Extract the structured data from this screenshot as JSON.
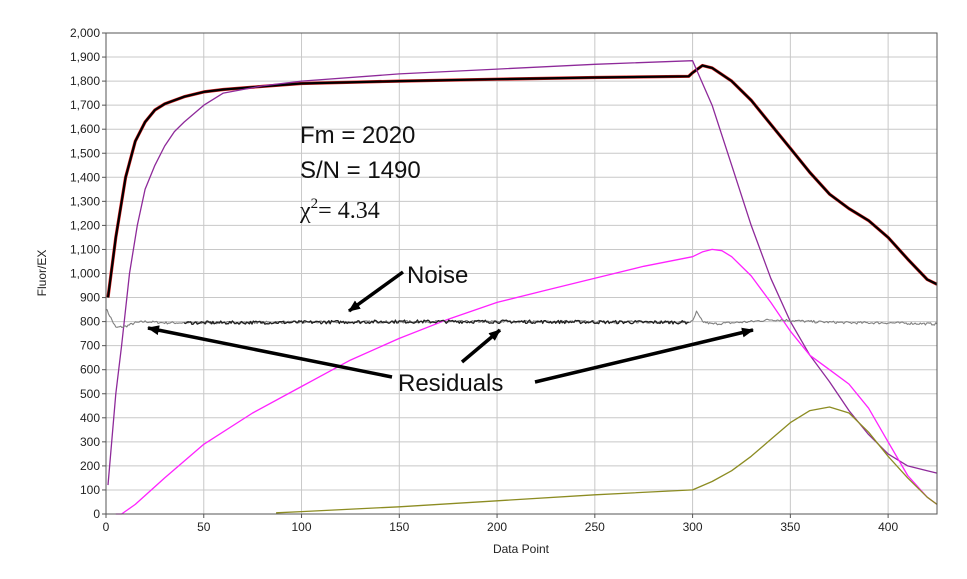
{
  "chart_data": {
    "type": "line",
    "xlabel": "Data Point",
    "ylabel": "Fluor/EX",
    "xlim": [
      0,
      425
    ],
    "ylim": [
      0,
      2000
    ],
    "x_ticks": [
      "0",
      "50",
      "100",
      "150",
      "200",
      "250",
      "300",
      "350",
      "400"
    ],
    "y_ticks": [
      "0",
      "100",
      "200",
      "300",
      "400",
      "500",
      "600",
      "700",
      "800",
      "900",
      "1,000",
      "1,100",
      "1,200",
      "1,300",
      "1,400",
      "1,500",
      "1,600",
      "1,700",
      "1,800",
      "1,900",
      "2,000"
    ],
    "grid": true,
    "series": [
      {
        "color": "#e02020",
        "points": [
          [
            1,
            900
          ],
          [
            5,
            1150
          ],
          [
            10,
            1400
          ],
          [
            15,
            1550
          ],
          [
            20,
            1630
          ],
          [
            25,
            1680
          ],
          [
            30,
            1705
          ],
          [
            40,
            1735
          ],
          [
            50,
            1755
          ],
          [
            60,
            1765
          ],
          [
            80,
            1778
          ],
          [
            100,
            1790
          ],
          [
            150,
            1800
          ],
          [
            200,
            1808
          ],
          [
            250,
            1815
          ],
          [
            298,
            1820
          ],
          [
            300,
            1835
          ],
          [
            305,
            1865
          ],
          [
            310,
            1855
          ],
          [
            320,
            1800
          ],
          [
            330,
            1720
          ],
          [
            340,
            1620
          ],
          [
            350,
            1520
          ],
          [
            360,
            1420
          ],
          [
            370,
            1330
          ],
          [
            380,
            1270
          ],
          [
            390,
            1220
          ],
          [
            400,
            1150
          ],
          [
            410,
            1060
          ],
          [
            420,
            975
          ],
          [
            425,
            955
          ]
        ]
      },
      {
        "color": "#000000",
        "points": [
          [
            1,
            900
          ],
          [
            5,
            1150
          ],
          [
            10,
            1400
          ],
          [
            15,
            1550
          ],
          [
            20,
            1630
          ],
          [
            25,
            1680
          ],
          [
            30,
            1705
          ],
          [
            40,
            1735
          ],
          [
            50,
            1755
          ],
          [
            60,
            1765
          ],
          [
            80,
            1778
          ],
          [
            100,
            1790
          ],
          [
            150,
            1800
          ],
          [
            200,
            1808
          ],
          [
            250,
            1815
          ],
          [
            298,
            1820
          ],
          [
            300,
            1835
          ],
          [
            305,
            1865
          ],
          [
            310,
            1855
          ],
          [
            320,
            1800
          ],
          [
            330,
            1720
          ],
          [
            340,
            1620
          ],
          [
            350,
            1520
          ],
          [
            360,
            1420
          ],
          [
            370,
            1330
          ],
          [
            380,
            1270
          ],
          [
            390,
            1220
          ],
          [
            400,
            1150
          ],
          [
            410,
            1060
          ],
          [
            420,
            975
          ],
          [
            425,
            955
          ]
        ]
      },
      {
        "color": "#8e2a9a",
        "points": [
          [
            1,
            120
          ],
          [
            5,
            500
          ],
          [
            8,
            700
          ],
          [
            12,
            1000
          ],
          [
            16,
            1200
          ],
          [
            20,
            1350
          ],
          [
            25,
            1450
          ],
          [
            30,
            1530
          ],
          [
            35,
            1590
          ],
          [
            40,
            1630
          ],
          [
            50,
            1700
          ],
          [
            60,
            1750
          ],
          [
            80,
            1780
          ],
          [
            100,
            1800
          ],
          [
            150,
            1830
          ],
          [
            200,
            1850
          ],
          [
            250,
            1870
          ],
          [
            300,
            1885
          ],
          [
            310,
            1700
          ],
          [
            320,
            1450
          ],
          [
            330,
            1200
          ],
          [
            340,
            980
          ],
          [
            350,
            800
          ],
          [
            360,
            660
          ],
          [
            370,
            550
          ],
          [
            380,
            430
          ],
          [
            390,
            330
          ],
          [
            400,
            250
          ],
          [
            410,
            200
          ],
          [
            420,
            180
          ],
          [
            425,
            170
          ]
        ]
      },
      {
        "color": "#ff22ff",
        "points": [
          [
            5,
            0
          ],
          [
            8,
            0
          ],
          [
            15,
            40
          ],
          [
            30,
            150
          ],
          [
            50,
            290
          ],
          [
            75,
            420
          ],
          [
            100,
            530
          ],
          [
            125,
            640
          ],
          [
            150,
            730
          ],
          [
            175,
            810
          ],
          [
            200,
            880
          ],
          [
            225,
            930
          ],
          [
            250,
            980
          ],
          [
            275,
            1030
          ],
          [
            300,
            1070
          ],
          [
            305,
            1090
          ],
          [
            310,
            1100
          ],
          [
            315,
            1095
          ],
          [
            320,
            1070
          ],
          [
            330,
            990
          ],
          [
            340,
            880
          ],
          [
            350,
            760
          ],
          [
            360,
            660
          ],
          [
            370,
            600
          ],
          [
            380,
            540
          ],
          [
            390,
            440
          ],
          [
            400,
            300
          ],
          [
            410,
            160
          ],
          [
            420,
            70
          ],
          [
            425,
            40
          ]
        ]
      },
      {
        "color": "#8c8c22",
        "points": [
          [
            87,
            5
          ],
          [
            100,
            10
          ],
          [
            150,
            30
          ],
          [
            200,
            55
          ],
          [
            250,
            80
          ],
          [
            300,
            100
          ],
          [
            310,
            135
          ],
          [
            320,
            180
          ],
          [
            330,
            240
          ],
          [
            340,
            310
          ],
          [
            350,
            380
          ],
          [
            360,
            430
          ],
          [
            370,
            445
          ],
          [
            380,
            420
          ],
          [
            390,
            340
          ],
          [
            400,
            240
          ],
          [
            410,
            150
          ],
          [
            420,
            70
          ],
          [
            425,
            40
          ]
        ]
      },
      {
        "color": "#808080",
        "noise": 5,
        "points": [
          [
            0,
            855
          ],
          [
            5,
            775
          ],
          [
            10,
            780
          ],
          [
            15,
            795
          ],
          [
            20,
            800
          ],
          [
            30,
            795
          ],
          [
            50,
            795
          ],
          [
            80,
            797
          ],
          [
            120,
            798
          ],
          [
            160,
            800
          ],
          [
            200,
            800
          ],
          [
            240,
            800
          ],
          [
            280,
            798
          ],
          [
            298,
            798
          ],
          [
            300,
            800
          ],
          [
            302,
            840
          ],
          [
            305,
            800
          ],
          [
            310,
            790
          ],
          [
            320,
            795
          ],
          [
            330,
            800
          ],
          [
            340,
            808
          ],
          [
            350,
            805
          ],
          [
            360,
            800
          ],
          [
            380,
            795
          ],
          [
            400,
            795
          ],
          [
            425,
            790
          ]
        ]
      },
      {
        "color": "#202020",
        "noise": 7,
        "points": [
          [
            40,
            795
          ],
          [
            100,
            797
          ],
          [
            150,
            800
          ],
          [
            200,
            800
          ],
          [
            250,
            798
          ],
          [
            298,
            797
          ]
        ]
      }
    ],
    "annotations": [
      {
        "text": "Fm = 2020"
      },
      {
        "text": "S/N = 1490"
      },
      {
        "text": "χ",
        "sup": "2",
        "rest": "= 4.34"
      },
      {
        "text": "Noise"
      },
      {
        "text": "Residuals"
      }
    ]
  }
}
